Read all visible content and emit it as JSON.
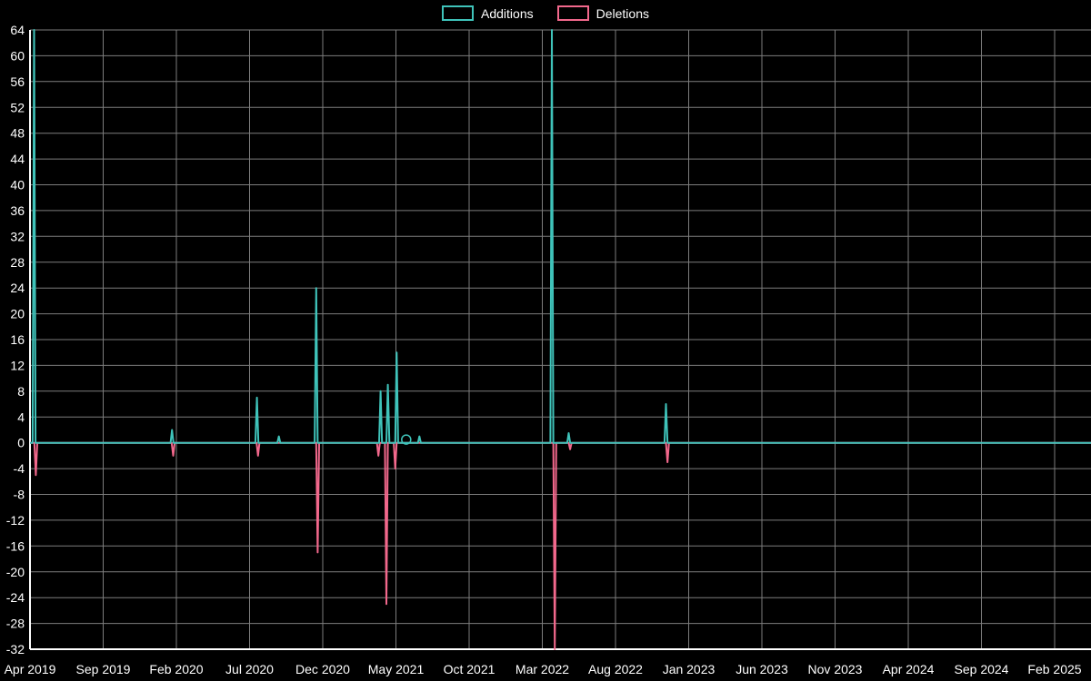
{
  "chart_data": {
    "type": "line",
    "title": "",
    "legend_position": "top-center",
    "x_axis": {
      "tick_labels": [
        "Apr 2019",
        "Sep 2019",
        "Feb 2020",
        "Jul 2020",
        "Dec 2020",
        "May 2021",
        "Oct 2021",
        "Mar 2022",
        "Aug 2022",
        "Jan 2023",
        "Jun 2023",
        "Nov 2023",
        "Apr 2024",
        "Sep 2024",
        "Feb 2025"
      ],
      "tick_months": [
        0,
        5,
        10,
        15,
        20,
        25,
        30,
        35,
        40,
        45,
        50,
        55,
        60,
        65,
        70
      ]
    },
    "y_axis": {
      "min": -32,
      "max": 64,
      "step": 4,
      "tick_labels": [
        "64",
        "60",
        "56",
        "52",
        "48",
        "44",
        "40",
        "36",
        "32",
        "28",
        "24",
        "20",
        "16",
        "12",
        "8",
        "4",
        "0",
        "-4",
        "-8",
        "-12",
        "-16",
        "-20",
        "-24",
        "-28",
        "-32"
      ]
    },
    "series": [
      {
        "name": "Additions",
        "color": "#3fc3ba",
        "baseline": 0,
        "spikes": [
          [
            0.28,
            64
          ],
          [
            9.7,
            2
          ],
          [
            15.5,
            7
          ],
          [
            17.0,
            1
          ],
          [
            19.55,
            24
          ],
          [
            23.95,
            8
          ],
          [
            24.45,
            9
          ],
          [
            25.05,
            14
          ],
          [
            26.6,
            1
          ],
          [
            35.65,
            64
          ],
          [
            36.8,
            1.5
          ],
          [
            43.45,
            6
          ]
        ]
      },
      {
        "name": "Deletions",
        "color": "#f2688c",
        "baseline": 0,
        "spikes": [
          [
            0.4,
            -5
          ],
          [
            9.78,
            -2
          ],
          [
            15.58,
            -2
          ],
          [
            19.65,
            -17
          ],
          [
            23.8,
            -2
          ],
          [
            24.35,
            -25
          ],
          [
            24.95,
            -4
          ],
          [
            35.85,
            -32
          ],
          [
            36.9,
            -1
          ],
          [
            43.55,
            -3
          ]
        ]
      }
    ],
    "markers": [
      {
        "series": "Additions",
        "t": 25.7,
        "v": 0.5,
        "shape": "open-circle"
      }
    ],
    "layout": {
      "background": "#000000",
      "grid": true,
      "grid_color": "#7d7d7d",
      "axis_color": "#ffffff",
      "text_color": "#ffffff",
      "plot_left": 33,
      "plot_top": 33,
      "plot_bottom": 715,
      "plot_right": 1200,
      "x_tick_start": 33,
      "x_tick_end": 1160
    }
  }
}
